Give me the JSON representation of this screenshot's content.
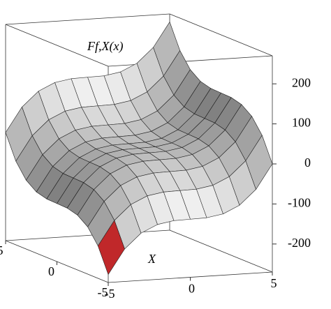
{
  "chart_data": {
    "type": "surface",
    "xlabel": "X",
    "zlabel": "Ff,X(x)",
    "x": [
      -5,
      -4,
      -3,
      -2,
      -1,
      0,
      1,
      2,
      3,
      4,
      5
    ],
    "y": [
      -5,
      -4,
      -3,
      -2,
      -1,
      0,
      1,
      2,
      3,
      4,
      5
    ],
    "z": [
      [
        -250,
        -189,
        -152,
        -133,
        -126,
        -125,
        -124,
        -117,
        -98,
        -61,
        0
      ],
      [
        -189,
        -128,
        -91,
        -72,
        -65,
        -64,
        -63,
        -56,
        -37,
        0,
        61
      ],
      [
        -152,
        -91,
        -54,
        -35,
        -28,
        -27,
        -26,
        -19,
        0,
        37,
        98
      ],
      [
        -133,
        -72,
        -35,
        -16,
        -9,
        -8,
        -7,
        0,
        19,
        56,
        117
      ],
      [
        -126,
        -65,
        -28,
        -9,
        -2,
        -1,
        0,
        7,
        26,
        63,
        124
      ],
      [
        -125,
        -64,
        -27,
        -8,
        -1,
        0,
        1,
        8,
        27,
        64,
        125
      ],
      [
        -124,
        -63,
        -26,
        -7,
        0,
        1,
        2,
        9,
        28,
        65,
        126
      ],
      [
        -117,
        -56,
        -19,
        0,
        7,
        8,
        9,
        16,
        35,
        72,
        133
      ],
      [
        -98,
        -37,
        0,
        19,
        26,
        27,
        28,
        35,
        54,
        91,
        152
      ],
      [
        -61,
        0,
        37,
        56,
        63,
        64,
        65,
        72,
        91,
        128,
        189
      ],
      [
        0,
        61,
        98,
        117,
        124,
        125,
        126,
        133,
        152,
        189,
        250
      ]
    ],
    "xlim": [
      -5,
      5
    ],
    "ylim": [
      -5,
      5
    ],
    "zlim": [
      -270,
      270
    ],
    "xticks": [
      -5,
      0,
      5
    ],
    "yticks": [
      -5,
      0,
      5
    ],
    "zticks": [
      -200,
      -100,
      0,
      100,
      200
    ],
    "color": "#b8b8b8",
    "low_color": "#c0282a"
  }
}
